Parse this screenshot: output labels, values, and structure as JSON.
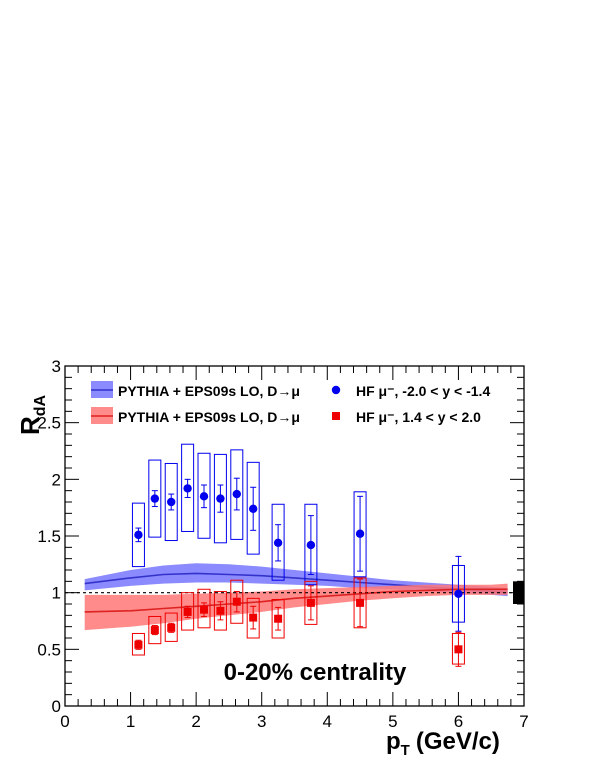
{
  "chart_data": {
    "type": "scatter",
    "xlabel": "p",
    "xlabel_sub": "T",
    "xlabel_unit": "(GeV/c)",
    "ylabel": "R",
    "ylabel_sub": "dA",
    "xlim": [
      0,
      7
    ],
    "ylim": [
      0,
      3
    ],
    "x_ticks": [
      "0",
      "1",
      "2",
      "3",
      "4",
      "5",
      "6",
      "7"
    ],
    "y_ticks": [
      "0",
      "0.5",
      "1",
      "1.5",
      "2",
      "2.5",
      "3"
    ],
    "annotation": "0-20% centrality",
    "reference_line": 1,
    "legend": [
      {
        "label": "PYTHIA + EPS09s LO, D→μ",
        "symbol": "band",
        "color": "#7777ff",
        "line_color": "#3333cc"
      },
      {
        "label": "HF μ⁻, -2.0 < y < -1.4",
        "symbol": "circle",
        "color": "#0000ee"
      },
      {
        "label": "PYTHIA + EPS09s LO, D→μ",
        "symbol": "band",
        "color": "#ff7777",
        "line_color": "#dd2222"
      },
      {
        "label": "HF μ⁻,  1.4 < y < 2.0",
        "symbol": "square",
        "color": "#ee0000"
      }
    ],
    "global_uncertainty": {
      "y": 1.0,
      "low": 0.9,
      "high": 1.1,
      "color": "#000000"
    },
    "series": [
      {
        "name": "HF μ⁻, -2.0 < y < -1.4",
        "marker": "circle",
        "color": "#0000ee",
        "points": [
          {
            "x": 1.12,
            "y": 1.51,
            "stat": 0.06,
            "sys_low": 1.23,
            "sys_high": 1.79
          },
          {
            "x": 1.37,
            "y": 1.83,
            "stat": 0.07,
            "sys_low": 1.49,
            "sys_high": 2.17
          },
          {
            "x": 1.62,
            "y": 1.8,
            "stat": 0.07,
            "sys_low": 1.46,
            "sys_high": 2.14
          },
          {
            "x": 1.87,
            "y": 1.92,
            "stat": 0.08,
            "sys_low": 1.54,
            "sys_high": 2.31
          },
          {
            "x": 2.12,
            "y": 1.85,
            "stat": 0.1,
            "sys_low": 1.48,
            "sys_high": 2.23
          },
          {
            "x": 2.37,
            "y": 1.83,
            "stat": 0.12,
            "sys_low": 1.44,
            "sys_high": 2.22
          },
          {
            "x": 2.62,
            "y": 1.87,
            "stat": 0.14,
            "sys_low": 1.47,
            "sys_high": 2.26
          },
          {
            "x": 2.87,
            "y": 1.74,
            "stat": 0.19,
            "sys_low": 1.34,
            "sys_high": 2.15
          },
          {
            "x": 3.25,
            "y": 1.44,
            "stat": 0.16,
            "sys_low": 1.11,
            "sys_high": 1.78
          },
          {
            "x": 3.75,
            "y": 1.42,
            "stat": 0.26,
            "sys_low": 1.07,
            "sys_high": 1.78
          },
          {
            "x": 4.5,
            "y": 1.52,
            "stat": 0.33,
            "sys_low": 1.14,
            "sys_high": 1.89
          },
          {
            "x": 6.0,
            "y": 0.99,
            "stat": 0.33,
            "sys_low": 0.74,
            "sys_high": 1.24
          }
        ]
      },
      {
        "name": "HF μ⁻,  1.4 < y < 2.0",
        "marker": "square",
        "color": "#ee0000",
        "points": [
          {
            "x": 1.12,
            "y": 0.54,
            "stat": 0.04,
            "sys_low": 0.45,
            "sys_high": 0.64
          },
          {
            "x": 1.37,
            "y": 0.67,
            "stat": 0.04,
            "sys_low": 0.55,
            "sys_high": 0.79
          },
          {
            "x": 1.62,
            "y": 0.69,
            "stat": 0.04,
            "sys_low": 0.57,
            "sys_high": 0.82
          },
          {
            "x": 1.87,
            "y": 0.83,
            "stat": 0.05,
            "sys_low": 0.67,
            "sys_high": 1.0
          },
          {
            "x": 2.12,
            "y": 0.85,
            "stat": 0.06,
            "sys_low": 0.69,
            "sys_high": 1.03
          },
          {
            "x": 2.37,
            "y": 0.84,
            "stat": 0.08,
            "sys_low": 0.67,
            "sys_high": 1.01
          },
          {
            "x": 2.62,
            "y": 0.92,
            "stat": 0.09,
            "sys_low": 0.73,
            "sys_high": 1.11
          },
          {
            "x": 2.87,
            "y": 0.78,
            "stat": 0.1,
            "sys_low": 0.6,
            "sys_high": 0.95
          },
          {
            "x": 3.25,
            "y": 0.77,
            "stat": 0.1,
            "sys_low": 0.6,
            "sys_high": 0.94
          },
          {
            "x": 3.75,
            "y": 0.91,
            "stat": 0.15,
            "sys_low": 0.72,
            "sys_high": 1.1
          },
          {
            "x": 4.5,
            "y": 0.91,
            "stat": 0.21,
            "sys_low": 0.69,
            "sys_high": 1.13
          },
          {
            "x": 6.0,
            "y": 0.5,
            "stat": 0.15,
            "sys_low": 0.37,
            "sys_high": 0.64
          }
        ]
      }
    ],
    "bands": [
      {
        "name": "PYTHIA + EPS09s LO, D→μ (backward)",
        "fill": "#7777ff",
        "line": "#3333cc",
        "x": [
          0.3,
          1.0,
          1.5,
          2.0,
          2.5,
          3.0,
          3.5,
          4.0,
          4.5,
          5.0,
          5.5,
          6.0,
          6.5,
          6.75
        ],
        "y": [
          1.08,
          1.13,
          1.16,
          1.17,
          1.16,
          1.15,
          1.13,
          1.11,
          1.09,
          1.07,
          1.05,
          1.03,
          1.01,
          1.0
        ],
        "low": [
          1.02,
          1.06,
          1.08,
          1.09,
          1.09,
          1.08,
          1.07,
          1.06,
          1.04,
          1.03,
          1.01,
          1.0,
          0.98,
          0.97
        ],
        "high": [
          1.12,
          1.2,
          1.24,
          1.26,
          1.25,
          1.23,
          1.2,
          1.17,
          1.14,
          1.11,
          1.09,
          1.07,
          1.05,
          1.04
        ]
      },
      {
        "name": "PYTHIA + EPS09s LO, D→μ (forward)",
        "fill": "#ff7777",
        "line": "#dd2222",
        "x": [
          0.3,
          1.0,
          1.5,
          2.0,
          2.5,
          3.0,
          3.5,
          4.0,
          4.5,
          5.0,
          5.5,
          6.0,
          6.5,
          6.75
        ],
        "y": [
          0.83,
          0.84,
          0.86,
          0.88,
          0.9,
          0.92,
          0.95,
          0.97,
          0.99,
          1.01,
          1.02,
          1.03,
          1.03,
          1.03
        ],
        "low": [
          0.67,
          0.7,
          0.73,
          0.77,
          0.8,
          0.83,
          0.87,
          0.9,
          0.93,
          0.95,
          0.97,
          0.98,
          0.98,
          0.98
        ],
        "high": [
          0.98,
          0.98,
          0.98,
          0.99,
          1.0,
          1.01,
          1.03,
          1.04,
          1.05,
          1.06,
          1.07,
          1.07,
          1.07,
          1.08
        ]
      }
    ]
  }
}
